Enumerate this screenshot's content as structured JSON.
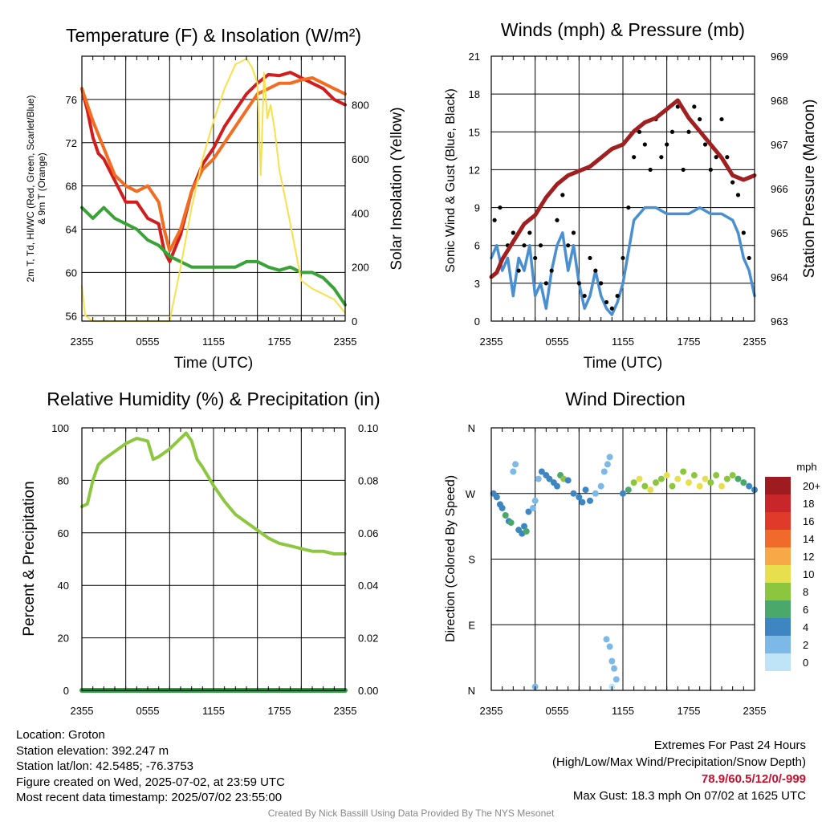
{
  "chart_data": [
    {
      "type": "line",
      "title": "Temperature (F) & Insolation (W/m²)",
      "xlabel": "Time (UTC)",
      "ylabel_left_lines": [
        "2m T, Td, HI/WC (Red, Green, Scarlet/Blue)",
        "& 9m T (Orange)"
      ],
      "ylabel_right": "Solar Insolation (Yellow)",
      "x_ticks": [
        "2355",
        "0555",
        "1155",
        "1755",
        "2355"
      ],
      "ylim_left": [
        55.5,
        80
      ],
      "yticks_left": [
        56,
        60,
        64,
        68,
        72,
        76
      ],
      "ylim_right": [
        0,
        980
      ],
      "yticks_right": [
        0,
        200,
        400,
        600,
        800
      ],
      "series": [
        {
          "axis": "left",
          "color": "#d11d1d",
          "x": [
            0,
            0.5,
            1,
            1.5,
            2,
            3,
            4,
            5,
            6,
            7,
            7.5,
            8,
            9,
            10,
            11,
            12,
            13,
            14,
            15,
            16,
            17,
            18,
            19,
            20,
            21,
            22,
            23,
            24
          ],
          "values": [
            77,
            75,
            72.5,
            71,
            70.5,
            68.5,
            66.5,
            66.5,
            65,
            64.5,
            62,
            61,
            63.5,
            67.5,
            70,
            71.5,
            73.5,
            75,
            76.5,
            77.5,
            78.3,
            78.2,
            78.5,
            78,
            77.5,
            77,
            76,
            75.5
          ]
        },
        {
          "axis": "left",
          "color": "#f26d21",
          "x": [
            0,
            1,
            2,
            3,
            4,
            5,
            6,
            7,
            7.5,
            8,
            9,
            10,
            11,
            12,
            13,
            14,
            15,
            16,
            17,
            18,
            19,
            20,
            21,
            22,
            23,
            24
          ],
          "values": [
            77,
            74,
            71.5,
            69,
            68,
            67.5,
            68,
            66.5,
            64,
            62,
            64,
            67.5,
            69.5,
            70.5,
            72,
            73.5,
            75,
            76.5,
            77,
            77.5,
            77.5,
            77.8,
            78,
            77.5,
            77,
            76.5
          ]
        },
        {
          "axis": "left",
          "color": "#3aa335",
          "x": [
            0,
            1,
            2,
            3,
            4,
            5,
            6,
            7,
            8,
            9,
            10,
            11,
            12,
            13,
            14,
            15,
            16,
            17,
            18,
            19,
            20,
            21,
            22,
            23,
            24
          ],
          "values": [
            66,
            65,
            66,
            65,
            64.5,
            64,
            63,
            62.5,
            61.5,
            61,
            60.5,
            60.5,
            60.5,
            60.5,
            60.5,
            61,
            61,
            60.5,
            60.2,
            60.5,
            60,
            60,
            59.5,
            58.5,
            57
          ]
        },
        {
          "axis": "right",
          "color": "#f7e14a",
          "x": [
            0,
            0.3,
            1,
            2,
            3,
            4,
            5,
            6,
            7,
            8,
            9,
            10,
            11,
            12,
            13,
            14,
            15,
            15.5,
            16,
            16.3,
            16.6,
            16.9,
            17.2,
            17.6,
            18,
            19,
            20,
            21,
            22,
            23,
            24
          ],
          "values": [
            130,
            20,
            0,
            0,
            0,
            0,
            0,
            0,
            0,
            0,
            200,
            420,
            600,
            740,
            860,
            950,
            970,
            940,
            880,
            540,
            920,
            750,
            800,
            700,
            560,
            360,
            150,
            120,
            100,
            80,
            30
          ]
        }
      ]
    },
    {
      "type": "line",
      "title": "Winds (mph) & Pressure (mb)",
      "xlabel": "Time (UTC)",
      "ylabel_left": "Sonic Wind & Gust (Blue, Black)",
      "ylabel_right": "Station Pressure (Maroon)",
      "x_ticks": [
        "2355",
        "0555",
        "1155",
        "1755",
        "2355"
      ],
      "ylim_left": [
        0,
        21
      ],
      "yticks_left": [
        0,
        3,
        6,
        9,
        12,
        15,
        18,
        21
      ],
      "ylim_right": [
        963,
        969
      ],
      "yticks_right": [
        963,
        964,
        965,
        966,
        967,
        968,
        969
      ],
      "series": [
        {
          "name": "Sonic Wind",
          "axis": "left",
          "color": "#4a90d0",
          "x": [
            0,
            0.5,
            1,
            1.5,
            2,
            2.5,
            3,
            3.5,
            4,
            4.5,
            5,
            5.5,
            6,
            6.5,
            7,
            7.5,
            8,
            8.5,
            9,
            9.5,
            10,
            10.5,
            11,
            11.5,
            12,
            13,
            14,
            15,
            16,
            17,
            18,
            19,
            20,
            21,
            22,
            22.5,
            23,
            23.5,
            24
          ],
          "values": [
            5,
            6,
            4,
            5,
            2,
            5,
            4,
            6,
            2,
            3,
            1,
            4,
            6,
            7,
            4,
            6,
            3,
            1,
            2,
            4,
            2,
            1,
            0.5,
            1.5,
            3,
            8,
            9,
            9,
            8.5,
            8.5,
            8.5,
            9,
            8.5,
            8.5,
            8,
            7,
            5,
            4,
            2
          ]
        },
        {
          "name": "Gust",
          "axis": "left",
          "color": "#000000",
          "type": "scatter",
          "x": [
            0.3,
            0.8,
            1.5,
            2,
            2.5,
            3,
            3.5,
            4,
            4.5,
            5,
            5.5,
            6,
            6.5,
            7,
            7.5,
            8,
            8.5,
            9,
            9.5,
            10,
            10.5,
            11,
            11.5,
            12,
            12.5,
            13,
            13.5,
            14,
            14.5,
            15,
            15.5,
            16,
            16.5,
            17,
            17.5,
            18,
            18.5,
            19,
            19.5,
            20,
            20.5,
            21,
            21.5,
            22,
            22.5,
            23,
            23.5
          ],
          "values": [
            8,
            9,
            6,
            7,
            4,
            6,
            7,
            5,
            6,
            3,
            4,
            8,
            10,
            6,
            7,
            3,
            2,
            5,
            4,
            3,
            1.5,
            1,
            2,
            5,
            9,
            13,
            15,
            14,
            12,
            16,
            13,
            14,
            15,
            17,
            12,
            15,
            17,
            16,
            14,
            12,
            13,
            16,
            13,
            11,
            10,
            7,
            5
          ]
        },
        {
          "name": "Station Pressure",
          "axis": "right",
          "color": "#a01f20",
          "x": [
            0,
            0.5,
            1,
            2,
            3,
            4,
            5,
            6,
            7,
            8,
            9,
            10,
            11,
            12,
            13,
            14,
            15,
            16,
            17,
            18,
            19,
            20,
            21,
            22,
            23,
            24
          ],
          "values": [
            964,
            964.1,
            964.4,
            964.8,
            965.2,
            965.4,
            965.8,
            966.1,
            966.3,
            966.4,
            966.5,
            966.7,
            966.9,
            967,
            967.3,
            967.5,
            967.6,
            967.8,
            968,
            967.6,
            967.3,
            967,
            966.7,
            966.3,
            966.2,
            966.3
          ]
        }
      ]
    },
    {
      "type": "line",
      "title": "Relative Humidity (%) & Precipitation (in)",
      "ylabel_left": "Percent & Precipitation",
      "x_ticks": [
        "2355",
        "0555",
        "1155",
        "1755",
        "2355"
      ],
      "ylim_left": [
        0,
        100
      ],
      "yticks_left": [
        0,
        20,
        40,
        60,
        80,
        100
      ],
      "ylim_right": [
        0,
        0.1
      ],
      "yticks_right": [
        "0.00",
        "0.02",
        "0.04",
        "0.06",
        "0.08",
        "0.10"
      ],
      "series": [
        {
          "axis": "left",
          "color": "#8dc63f",
          "x": [
            0,
            0.5,
            1,
            1.5,
            2,
            3,
            4,
            5,
            6,
            6.5,
            7,
            8,
            9,
            9.5,
            10,
            10.5,
            11,
            12,
            13,
            14,
            15,
            16,
            17,
            18,
            19,
            20,
            21,
            22,
            23,
            24
          ],
          "values": [
            70,
            71,
            80,
            86,
            88,
            91,
            94,
            96,
            95,
            88,
            89,
            92,
            96,
            98,
            95,
            88,
            85,
            78,
            72,
            67,
            64,
            61,
            58,
            56,
            55,
            54,
            53,
            53,
            52,
            52
          ]
        },
        {
          "axis": "right",
          "color": "#2f9e44",
          "x": [
            0,
            24
          ],
          "values": [
            0,
            0
          ]
        }
      ]
    },
    {
      "type": "scatter",
      "title": "Wind Direction",
      "ylabel_left": "Direction (Colored By Speed)",
      "x_ticks": [
        "2355",
        "0555",
        "1155",
        "1755",
        "2355"
      ],
      "y_ticks": [
        "N",
        "E",
        "S",
        "W",
        "N"
      ],
      "ylim": [
        0,
        360
      ],
      "legend_title": "mph",
      "legend_labels": [
        "20+",
        "18",
        "16",
        "14",
        "12",
        "10",
        "8",
        "6",
        "4",
        "2",
        "0"
      ],
      "legend_colors": [
        "#9e1b1f",
        "#c8262a",
        "#e03a2a",
        "#f06a2c",
        "#f9a847",
        "#e8df4e",
        "#8cc63f",
        "#4aa86a",
        "#3e86c2",
        "#7db9e6",
        "#bfe4f8"
      ],
      "points": [
        [
          0.2,
          270,
          4
        ],
        [
          0.5,
          265,
          4
        ],
        [
          0.8,
          255,
          3
        ],
        [
          1,
          250,
          4
        ],
        [
          1.3,
          240,
          5
        ],
        [
          1.6,
          232,
          4
        ],
        [
          1.8,
          230,
          5
        ],
        [
          2,
          300,
          1
        ],
        [
          2.2,
          310,
          1
        ],
        [
          2.5,
          220,
          4
        ],
        [
          2.8,
          215,
          3
        ],
        [
          3,
          225,
          4
        ],
        [
          3.2,
          218,
          5
        ],
        [
          3.4,
          245,
          3
        ],
        [
          3.8,
          250,
          2
        ],
        [
          4,
          260,
          2
        ],
        [
          4.3,
          290,
          2
        ],
        [
          4.6,
          300,
          4
        ],
        [
          5,
          295,
          4
        ],
        [
          5.3,
          290,
          4
        ],
        [
          5.7,
          285,
          3
        ],
        [
          6,
          280,
          4
        ],
        [
          6.3,
          295,
          6
        ],
        [
          6.6,
          290,
          7
        ],
        [
          7,
          288,
          4
        ],
        [
          7.5,
          270,
          4
        ],
        [
          8,
          265,
          4
        ],
        [
          8.3,
          258,
          3
        ],
        [
          8.6,
          275,
          3
        ],
        [
          9,
          260,
          3
        ],
        [
          9.5,
          270,
          2
        ],
        [
          10,
          280,
          2
        ],
        [
          10.3,
          300,
          2
        ],
        [
          10.6,
          310,
          1
        ],
        [
          10.8,
          320,
          1
        ],
        [
          10.5,
          70,
          1
        ],
        [
          10.8,
          60,
          1
        ],
        [
          11,
          40,
          1
        ],
        [
          11.2,
          30,
          1
        ],
        [
          11.4,
          15,
          1
        ],
        [
          11,
          5,
          0
        ],
        [
          4,
          5,
          1
        ],
        [
          12,
          270,
          4
        ],
        [
          12.5,
          275,
          5
        ],
        [
          13,
          285,
          7
        ],
        [
          13.5,
          290,
          9
        ],
        [
          14,
          280,
          8
        ],
        [
          14.5,
          275,
          10
        ],
        [
          15,
          285,
          7
        ],
        [
          15.5,
          290,
          8
        ],
        [
          16,
          295,
          9
        ],
        [
          16.5,
          280,
          8
        ],
        [
          17,
          290,
          10
        ],
        [
          17.5,
          300,
          7
        ],
        [
          18,
          285,
          9
        ],
        [
          18.5,
          295,
          8
        ],
        [
          19,
          280,
          9
        ],
        [
          19.5,
          290,
          10
        ],
        [
          20,
          285,
          8
        ],
        [
          20.5,
          295,
          7
        ],
        [
          21,
          280,
          9
        ],
        [
          21.5,
          290,
          8
        ],
        [
          22,
          295,
          7
        ],
        [
          22.5,
          290,
          6
        ],
        [
          23,
          285,
          5
        ],
        [
          23.5,
          280,
          4
        ],
        [
          24,
          275,
          3
        ]
      ]
    }
  ],
  "info": {
    "location": "Location: Groton",
    "elevation": "Station elevation: 392.247 m",
    "latlon": "Station lat/lon: 42.5485; -76.3753",
    "created": "Figure created on Wed, 2025-07-02, at 23:59 UTC",
    "recent": "Most recent data timestamp: 2025/07/02 23:55:00"
  },
  "extremes": {
    "title": "Extremes For Past 24 Hours",
    "subtitle": "(High/Low/Max Wind/Precipitation/Snow Depth)",
    "values": "78.9/60.5/12/0/-999",
    "gust": "Max Gust: 18.3 mph On 07/02 at 1625 UTC"
  },
  "credit": "Created By Nick Bassill Using Data Provided By The NYS Mesonet"
}
